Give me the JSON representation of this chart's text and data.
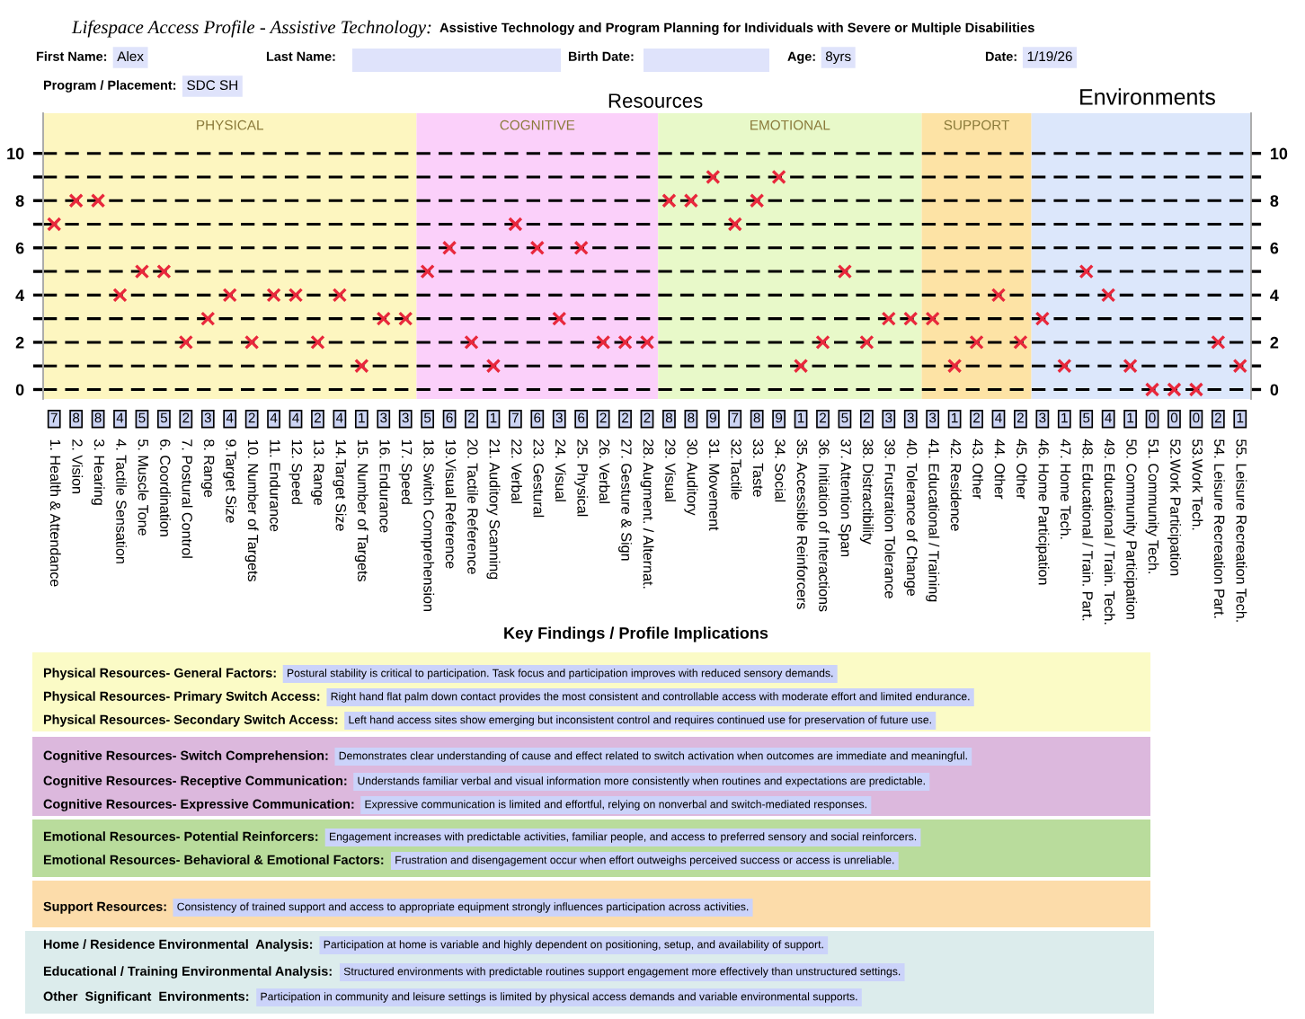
{
  "chart_data": {
    "type": "scatter",
    "title": "Lifespace Access Profile - Assistive Technology:",
    "subtitle": "Assistive Technology and Program Planning for Individuals with Severe or Multiple Disabilities",
    "categories": [
      "1. Health & Attendance",
      "2. Vision",
      "3. Hearing",
      "4. Tactile Sensation",
      "5. Muscle Tone",
      "6. Coordination",
      "7. Postural Control",
      "8. Range",
      "9.Target Size",
      "10. Number of Targets",
      "11. Endurance",
      "12. Speed",
      "13. Range",
      "14.Target Size",
      "15. Number of Targets",
      "16. Endurance",
      "17. Speed",
      "18. Switch Comprehension",
      "19.Visual Reference",
      "20. Tactile Reference",
      "21. Auditory Scanning",
      "22. Verbal",
      "23. Gestural",
      "24. Visual",
      "25. Physical",
      "26. Verbal",
      "27. Gesture & Sign",
      "28. Augment. / Alternat.",
      "29. Visual",
      "30. Auditory",
      "31. Movement",
      "32.Tactile",
      "33. Taste",
      "34. Social",
      "35. Accessible Reinforcers",
      "36. Initiation of Interactions",
      "37. Attention Span",
      "38. Distractibility",
      "39. Frustration Tolerance",
      "40. Tolerance of Change",
      "41. Educational / Training",
      "42. Residence",
      "43. Other",
      "44. Other",
      "45. Other",
      "46. Home Participation",
      "47. Home Tech.",
      "48. Educational / Train. Part.",
      "49. Educational / Train. Tech.",
      "50. Community Participation",
      "51. Community Tech.",
      "52.Work Participation",
      "53.Work Tech.",
      "54. Leisure Recreation Part.",
      "55. Leisure Recreation Tech."
    ],
    "series": [
      {
        "color": "#e8283c",
        "values": [
          7,
          8,
          8,
          4,
          5,
          5,
          2,
          3,
          4,
          2,
          4,
          4,
          2,
          4,
          1,
          3,
          3,
          5,
          6,
          2,
          1,
          7,
          6,
          3,
          6,
          2,
          2,
          2,
          8,
          8,
          9,
          7,
          8,
          9,
          1,
          2,
          5,
          2,
          3,
          3,
          3,
          1,
          2,
          4,
          2,
          3,
          1,
          5,
          4,
          1,
          0,
          0,
          0,
          2,
          1
        ]
      }
    ],
    "marker": "cross",
    "data_labels": true,
    "ylim": [
      -0.4,
      11.7
    ],
    "yticks": [
      0,
      {
        "value": 1,
        "label": null
      },
      2,
      {
        "value": 3,
        "label": null
      },
      4,
      {
        "value": 5,
        "label": null
      },
      6,
      {
        "value": 7,
        "label": null
      },
      8,
      {
        "value": 9,
        "label": null
      },
      10
    ],
    "y2lim": [
      -0.4,
      11.7
    ],
    "y2ticks": [
      0,
      {
        "value": 1,
        "label": null
      },
      2,
      {
        "value": 3,
        "label": null
      },
      4,
      {
        "value": 5,
        "label": null
      },
      6,
      {
        "value": 7,
        "label": null
      },
      8,
      {
        "value": 9,
        "label": null
      },
      10
    ],
    "grid": "y",
    "bands": [
      {
        "axis": "x",
        "from": "1. Health & Attendance",
        "to": "17. Speed",
        "label": "PHYSICAL",
        "color": "#fdf6c0"
      },
      {
        "axis": "x",
        "from": "18. Switch Comprehension",
        "to": "28. Augment. / Alternat.",
        "label": "COGNITIVE",
        "color": "#fbd0fa"
      },
      {
        "axis": "x",
        "from": "29. Visual",
        "to": "40. Tolerance of Change",
        "label": "EMOTIONAL",
        "color": "#e8f9c9"
      },
      {
        "axis": "x",
        "from": "41. Educational / Training",
        "to": "45. Other",
        "label": "SUPPORT",
        "color": "#fde3a5"
      },
      {
        "axis": "x",
        "from": "46. Home Participation",
        "to": "55. Leisure Recreation Tech.",
        "color": "#dce7fb"
      }
    ],
    "annotations": [
      "First Name:",
      "Alex",
      "Last Name:",
      "Birth Date:",
      "Age:",
      "8yrs",
      "Date:",
      "1/19/26",
      "Program / Placement:",
      "SDC SH",
      "Resources",
      "Environments",
      "Key Findings / Profile Implications",
      "Physical Resources- General Factors:",
      "Postural stability is critical to participation. Task focus and participation improves with reduced sensory demands.",
      "Physical Resources- Primary Switch Access:",
      "Right hand flat palm down contact provides the most consistent and controllable access with moderate effort and limited endurance.",
      "Physical Resources- Secondary Switch Access:",
      "Left hand access sites show emerging but inconsistent control and requires continued use for preservation of future use.",
      "Cognitive Resources- Switch Comprehension:",
      "Demonstrates clear understanding of cause and effect related to switch activation when outcomes are immediate and meaningful.",
      "Cognitive Resources- Receptive Communication:",
      "Understands familiar verbal and visual information more consistently when routines and expectations are predictable.",
      "Cognitive Resources- Expressive Communication:",
      "Expressive communication is limited and effortful, relying on nonverbal and switch-mediated responses.",
      "Emotional Resources- Potential Reinforcers:",
      "Engagement increases with predictable activities, familiar people, and access to preferred sensory and social reinforcers.",
      "Emotional Resources- Behavioral & Emotional Factors:",
      "Frustration and disengagement occur when effort outweighs perceived success or access is unreliable.",
      "Support Resources:",
      "Consistency of trained support and access to appropriate equipment strongly influences participation across activities.",
      "Home / Residence Environmental  Analysis:",
      "Participation at home is variable and highly dependent on positioning, setup, and availability of support.",
      "Educational / Training Environmental Analysis:",
      "Structured environments with predictable routines support engagement more effectively than unstructured settings.",
      "Other  Significant  Environments:",
      "Participation in community and leisure settings is limited by physical access demands and variable environmental supports."
    ]
  }
}
